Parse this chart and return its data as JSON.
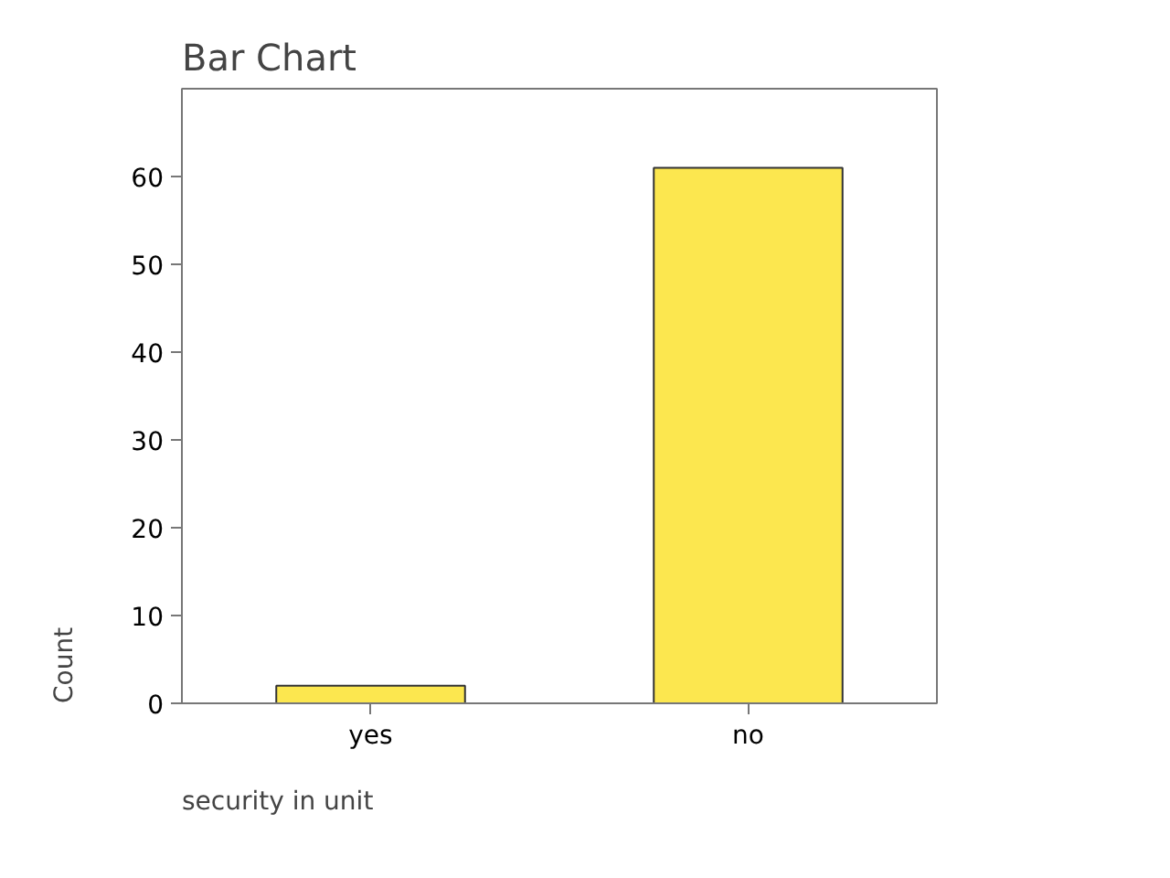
{
  "chart_data": {
    "type": "bar",
    "title": "Bar Chart",
    "xlabel": "security in unit",
    "ylabel": "Count",
    "categories": [
      "yes",
      "no"
    ],
    "values": [
      2,
      61
    ],
    "color": "#fce74f",
    "ylim": [
      0,
      70
    ],
    "yticks": [
      0,
      10,
      20,
      30,
      40,
      50,
      60
    ]
  }
}
